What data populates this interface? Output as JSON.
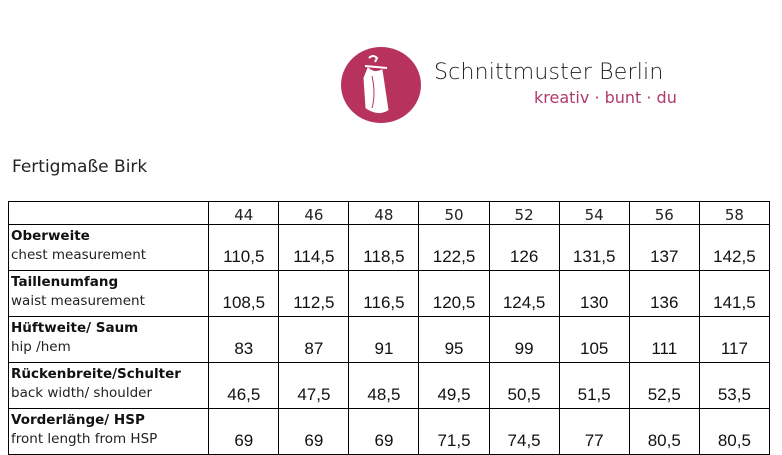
{
  "brand": {
    "name": "Schnittmuster Berlin",
    "tagline": "kreativ · bunt · du",
    "logo_color": "#b8325e",
    "tagline_color": "#b03a6a",
    "logo_icon": "dress-on-hanger-icon"
  },
  "title": "Fertigmaße Birk",
  "table": {
    "sizes": [
      "44",
      "46",
      "48",
      "50",
      "52",
      "54",
      "56",
      "58"
    ],
    "rows": [
      {
        "de": "Oberweite",
        "en": "chest measurement",
        "values": [
          "110,5",
          "114,5",
          "118,5",
          "122,5",
          "126",
          "131,5",
          "137",
          "142,5"
        ]
      },
      {
        "de": "Taillenumfang",
        "en": "waist measurement",
        "values": [
          "108,5",
          "112,5",
          "116,5",
          "120,5",
          "124,5",
          "130",
          "136",
          "141,5"
        ]
      },
      {
        "de": "Hüftweite/ Saum",
        "en": "hip /hem",
        "values": [
          "83",
          "87",
          "91",
          "95",
          "99",
          "105",
          "111",
          "117"
        ]
      },
      {
        "de": "Rückenbreite/Schulter",
        "en": "back width/ shoulder",
        "values": [
          "46,5",
          "47,5",
          "48,5",
          "49,5",
          "50,5",
          "51,5",
          "52,5",
          "53,5"
        ]
      },
      {
        "de": "Vorderlänge/ HSP",
        "en": "front length from HSP",
        "values": [
          "69",
          "69",
          "69",
          "71,5",
          "74,5",
          "77",
          "80,5",
          "80,5"
        ]
      }
    ]
  }
}
